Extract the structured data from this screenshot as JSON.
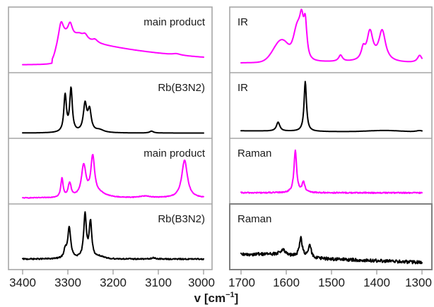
{
  "chart_data": {
    "type": "line",
    "xlabel": "v [cm",
    "xlabel_sup": "−1",
    "xlabel_end": "]",
    "colors": {
      "magenta": "#ff00ff",
      "black": "#000000"
    },
    "columns": [
      {
        "xrange": [
          3400,
          3000
        ],
        "ticks": [
          "3400",
          "3300",
          "3200",
          "3100",
          "3000"
        ],
        "rows": [
          {
            "label": "main product",
            "color": "magenta"
          },
          {
            "label": "Rb(B3N2)",
            "color": "black"
          },
          {
            "label": "main product",
            "color": "magenta"
          },
          {
            "label": "Rb(B3N2)",
            "color": "black"
          }
        ]
      },
      {
        "xrange": [
          1700,
          1300
        ],
        "ticks": [
          "1700",
          "1600",
          "1500",
          "1400",
          "1300"
        ],
        "rows": [
          {
            "label": "IR",
            "color": "magenta"
          },
          {
            "label": "IR",
            "color": "black"
          },
          {
            "label": "Raman",
            "color": "magenta"
          },
          {
            "label": "Raman",
            "color": "black"
          }
        ]
      }
    ]
  }
}
